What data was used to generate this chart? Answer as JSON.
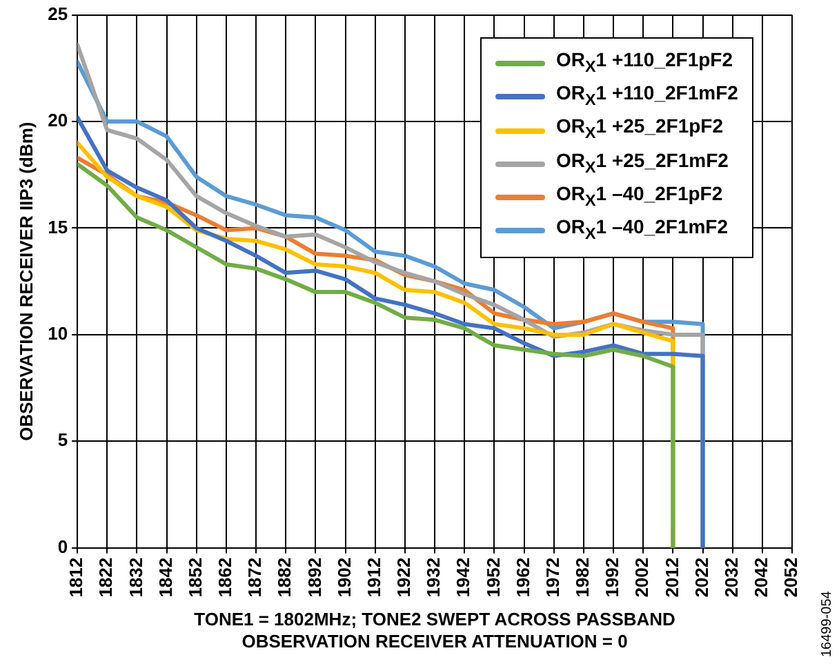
{
  "chart_data": {
    "type": "line",
    "xlabel": "TONE1 = 1802MHz; TONE2 SWEPT ACROSS PASSBAND\nOBSERVATION RECEIVER ATTENUATION = 0",
    "ylabel": "OBSERVATION RECEIVER IIP3 (dBm)",
    "annotations": [
      "16499-054"
    ],
    "series": [
      {
        "name": "OR$_{X}$1 +110_2F1pF2",
        "color": "#70ad47",
        "x": [
          1812,
          1822,
          1832,
          1842,
          1852,
          1862,
          1872,
          1882,
          1892,
          1902,
          1912,
          1922,
          1932,
          1942,
          1952,
          1962,
          1972,
          1982,
          1992,
          2002,
          2012,
          2012
        ],
        "values": [
          18,
          17,
          15.5,
          14.9,
          14.1,
          13.3,
          13.1,
          12.6,
          12,
          12,
          11.5,
          10.8,
          10.7,
          10.3,
          9.5,
          9.3,
          9.1,
          9,
          9.3,
          9,
          8.5,
          0
        ]
      },
      {
        "name": "OR$_{X}$1 +110_2F1mF2",
        "color": "#4472c4",
        "x": [
          1812,
          1822,
          1832,
          1842,
          1852,
          1862,
          1872,
          1882,
          1892,
          1902,
          1912,
          1922,
          1932,
          1942,
          1952,
          1962,
          1972,
          1982,
          1992,
          2002,
          2012,
          2022,
          2022
        ],
        "values": [
          20.2,
          17.7,
          16.9,
          16.3,
          15,
          14.4,
          13.7,
          12.9,
          13,
          12.6,
          11.7,
          11.4,
          11,
          10.5,
          10.3,
          9.6,
          9,
          9.2,
          9.5,
          9.1,
          9.1,
          9,
          0
        ]
      },
      {
        "name": "OR$_{X}$1 +25_2F1pF2",
        "color": "#ffc000",
        "x": [
          1812,
          1822,
          1832,
          1842,
          1852,
          1862,
          1872,
          1882,
          1892,
          1902,
          1912,
          1922,
          1932,
          1942,
          1952,
          1962,
          1972,
          1982,
          1992,
          2002,
          2012,
          2012
        ],
        "values": [
          19,
          17.4,
          16.5,
          16,
          14.9,
          14.5,
          14.4,
          14,
          13.3,
          13.2,
          12.9,
          12.1,
          12,
          11.5,
          10.5,
          10.3,
          10,
          10,
          10.5,
          10.1,
          9.7,
          0
        ]
      },
      {
        "name": "OR$_{X}$1 +25_2F1mF2",
        "color": "#a5a5a5",
        "x": [
          1812,
          1822,
          1832,
          1842,
          1852,
          1862,
          1872,
          1882,
          1892,
          1902,
          1912,
          1922,
          1932,
          1942,
          1952,
          1962,
          1972,
          1982,
          1992,
          2002,
          2012,
          2022,
          2022
        ],
        "values": [
          23.6,
          19.6,
          19.2,
          18.2,
          16.5,
          15.7,
          15.1,
          14.6,
          14.7,
          14.1,
          13.4,
          12.9,
          12.5,
          11.9,
          11.4,
          10.7,
          9.9,
          10.1,
          10.5,
          10.2,
          10,
          10,
          0
        ]
      },
      {
        "name": "OR$_{X}$1 –40_2F1pF2",
        "color": "#ed7d31",
        "x": [
          1812,
          1822,
          1832,
          1842,
          1852,
          1862,
          1872,
          1882,
          1892,
          1902,
          1912,
          1922,
          1932,
          1942,
          1952,
          1962,
          1972,
          1982,
          1992,
          2002,
          2012,
          2012
        ],
        "values": [
          18.3,
          17.5,
          16.5,
          16.2,
          15.6,
          14.9,
          15,
          14.6,
          13.8,
          13.7,
          13.5,
          12.8,
          12.5,
          12.1,
          11,
          10.7,
          10.5,
          10.6,
          11,
          10.6,
          10.3,
          0
        ]
      },
      {
        "name": "OR$_{X}$1 –40_2F1mF2",
        "color": "#5b9bd5",
        "x": [
          1812,
          1822,
          1832,
          1842,
          1852,
          1862,
          1872,
          1882,
          1892,
          1902,
          1912,
          1922,
          1932,
          1942,
          1952,
          1962,
          1972,
          1982,
          1992,
          2002,
          2012,
          2022,
          2022
        ],
        "values": [
          22.8,
          20,
          20,
          19.3,
          17.4,
          16.5,
          16.1,
          15.6,
          15.5,
          14.9,
          13.9,
          13.7,
          13.2,
          12.4,
          12.1,
          11.3,
          10.3,
          10.6,
          11,
          10.6,
          10.6,
          10.5,
          0
        ]
      }
    ],
    "xlim": [
      1812,
      2052
    ],
    "xticks": [
      1812,
      1822,
      1832,
      1842,
      1852,
      1862,
      1872,
      1882,
      1892,
      1902,
      1912,
      1922,
      1932,
      1942,
      1952,
      1962,
      1972,
      1982,
      1992,
      2002,
      2012,
      2022,
      2032,
      2042,
      2052
    ],
    "ylim": [
      0,
      25
    ],
    "yticks": [
      0,
      5,
      10,
      15,
      20,
      25
    ],
    "grid": true,
    "legend": "top right",
    "marker": "none",
    "line_style": "solid"
  }
}
